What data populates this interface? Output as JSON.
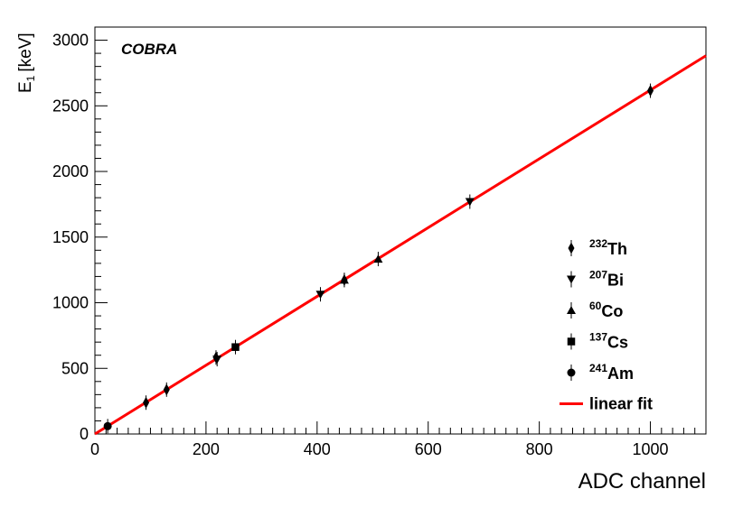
{
  "chart_data": {
    "type": "scatter",
    "label": "COBRA",
    "xlabel": "ADC channel",
    "ylabel_main": "E",
    "ylabel_sub": "1",
    "ylabel_unit": "[keV]",
    "xlim": [
      0,
      1100
    ],
    "ylim": [
      0,
      3100
    ],
    "xticks": [
      0,
      200,
      400,
      600,
      800,
      1000
    ],
    "yticks": [
      0,
      500,
      1000,
      1500,
      2000,
      2500,
      3000
    ],
    "series": [
      {
        "name": "Th",
        "mass": "232",
        "marker": "diamond",
        "x": [
          92,
          129,
          218,
          449,
          1000
        ],
        "y": [
          239,
          338,
          583,
          1173,
          2615
        ]
      },
      {
        "name": "Bi",
        "mass": "207",
        "marker": "triangle-down",
        "x": [
          220,
          406,
          675
        ],
        "y": [
          570,
          1064,
          1770
        ]
      },
      {
        "name": "Co",
        "mass": "60",
        "marker": "triangle-up",
        "x": [
          449,
          510
        ],
        "y": [
          1173,
          1333
        ]
      },
      {
        "name": "Cs",
        "mass": "137",
        "marker": "square",
        "x": [
          253
        ],
        "y": [
          662
        ]
      },
      {
        "name": "Am",
        "mass": "241",
        "marker": "circle",
        "x": [
          23
        ],
        "y": [
          60
        ]
      }
    ],
    "fit": {
      "name": "linear fit",
      "color": "#ff0000",
      "slope": 2.62,
      "intercept": 0
    },
    "legend_position": "lower-right",
    "grid": false
  }
}
